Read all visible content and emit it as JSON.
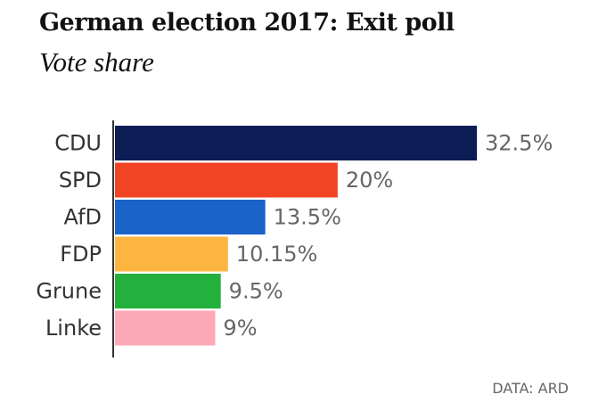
{
  "chart_data": {
    "type": "bar",
    "orientation": "horizontal",
    "title": "German election 2017: Exit poll",
    "subtitle": "Vote share",
    "categories": [
      "CDU",
      "SPD",
      "AfD",
      "FDP",
      "Grune",
      "Linke"
    ],
    "values": [
      32.5,
      20,
      13.5,
      10.15,
      9.5,
      9
    ],
    "value_labels": [
      "32.5%",
      "20%",
      "13.5%",
      "10.15%",
      "9.5%",
      "9%"
    ],
    "colors": [
      "#0c1c55",
      "#f04424",
      "#1a63c9",
      "#fbb540",
      "#24b03c",
      "#fda8b6"
    ],
    "xlabel": "",
    "ylabel": "",
    "xlim": [
      0,
      32.5
    ],
    "grid": false,
    "legend": "none",
    "source": "DATA: ARD"
  }
}
